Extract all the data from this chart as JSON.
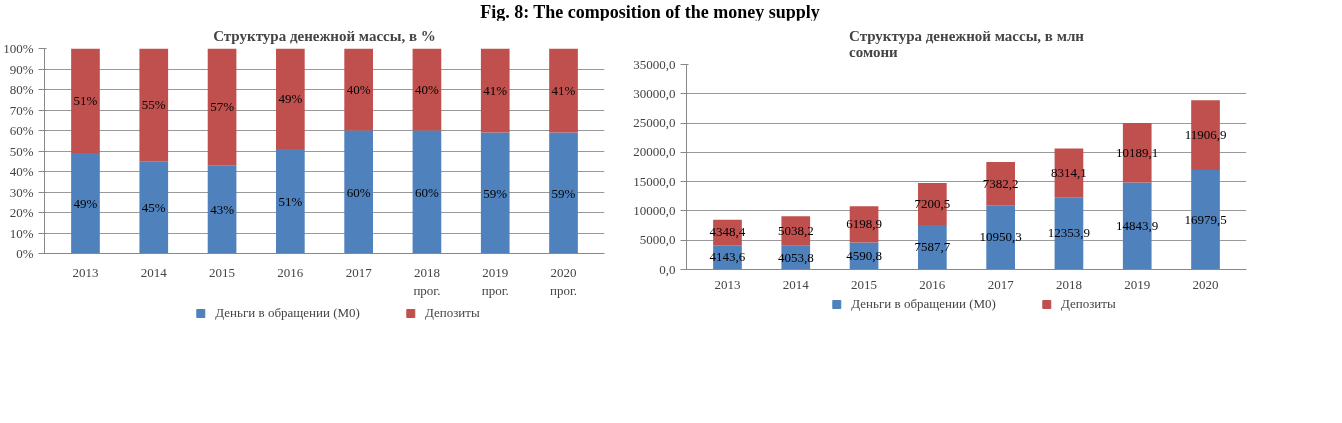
{
  "chart_data": [
    {
      "type": "bar",
      "title": "Структура денежной массы, в %",
      "annotations": [
        "Fig. 8: The composition of the money supply"
      ],
      "stacked": true,
      "categories": [
        "2013",
        "2014",
        "2015",
        "2016",
        "2017",
        "2018\nпрог.",
        "2019\nпрог.",
        "2020\nпрог."
      ],
      "series": [
        {
          "name": "Деньги в обращении (М0)",
          "color": "#4f81bd",
          "values": [
            49,
            45,
            43,
            51,
            60,
            60,
            59,
            59
          ],
          "value_labels": [
            "49%",
            "45%",
            "43%",
            "51%",
            "60%",
            "60%",
            "59%",
            "59%"
          ]
        },
        {
          "name": "Депозиты",
          "color": "#c0504d",
          "values": [
            51,
            55,
            57,
            49,
            40,
            40,
            41,
            41
          ],
          "value_labels": [
            "51%",
            "55%",
            "57%",
            "49%",
            "40%",
            "40%",
            "41%",
            "41%"
          ]
        }
      ],
      "ylim": [
        0,
        100
      ],
      "yticks": [
        {
          "value": 0,
          "label": "0%"
        },
        {
          "value": 10,
          "label": "10%"
        },
        {
          "value": 20,
          "label": "20%"
        },
        {
          "value": 30,
          "label": "30%"
        },
        {
          "value": 40,
          "label": "40%"
        },
        {
          "value": 50,
          "label": "50%"
        },
        {
          "value": 60,
          "label": "60%"
        },
        {
          "value": 70,
          "label": "70%"
        },
        {
          "value": 80,
          "label": "80%"
        },
        {
          "value": 90,
          "label": "90%"
        },
        {
          "value": 100,
          "label": "100%"
        }
      ],
      "grid": "y",
      "legend": "bottom"
    },
    {
      "type": "bar",
      "title": "Структура денежной массы, в млн\nсомони",
      "stacked": true,
      "categories": [
        "2013",
        "2014",
        "2015",
        "2016",
        "2017",
        "2018",
        "2019",
        "2020"
      ],
      "series": [
        {
          "name": "Деньги в обращении (М0)",
          "color": "#4f81bd",
          "values": [
            4143.6,
            4053.8,
            4590.8,
            7587.7,
            10950.3,
            12353.9,
            14843.9,
            16979.5
          ],
          "value_labels": [
            "4143,6",
            "4053,8",
            "4590,8",
            "7587,7",
            "10950,3",
            "12353,9",
            "14843,9",
            "16979,5"
          ]
        },
        {
          "name": "Депозиты",
          "color": "#c0504d",
          "values": [
            4348.4,
            5038.2,
            6198.9,
            7200.5,
            7382.2,
            8314.1,
            10189.1,
            11906.9
          ],
          "value_labels": [
            "4348,4",
            "5038,2",
            "6198,9",
            "7200,5",
            "7382,2",
            "8314,1",
            "10189,1",
            "11906,9"
          ]
        }
      ],
      "ylim": [
        0,
        35000
      ],
      "yticks": [
        {
          "value": 0,
          "label": "0,0"
        },
        {
          "value": 5000,
          "label": "5000,0"
        },
        {
          "value": 10000,
          "label": "10000,0"
        },
        {
          "value": 15000,
          "label": "15000,0"
        },
        {
          "value": 20000,
          "label": "20000,0"
        },
        {
          "value": 25000,
          "label": "25000,0"
        },
        {
          "value": 30000,
          "label": "30000,0"
        },
        {
          "value": 35000,
          "label": "35000,0"
        }
      ],
      "grid": "y",
      "legend": "bottom"
    }
  ]
}
